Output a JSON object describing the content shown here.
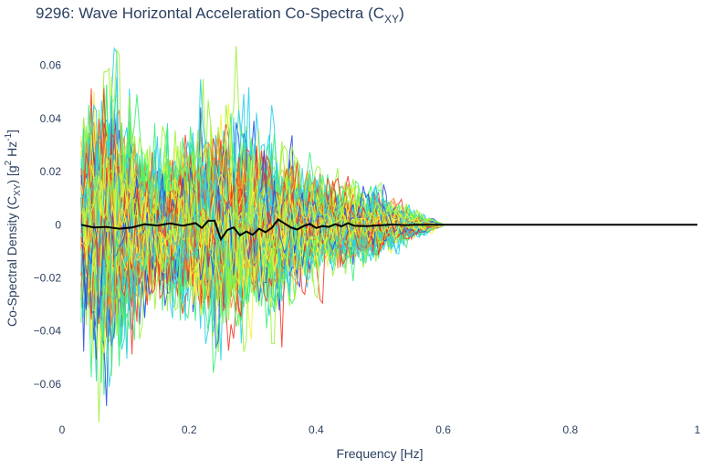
{
  "chart_data": {
    "type": "line",
    "title": {
      "main": "9296: Wave Horizontal Acceleration Co-Spectra (C",
      "sub": "XY",
      "close": ")"
    },
    "xlabel": "Frequency [Hz]",
    "ylabel": {
      "pre": "Co-Spectral Density (C",
      "sub": "XY",
      "mid": ") [g",
      "sup1": "2",
      "mid2": " Hz",
      "sup2": "-1",
      "post": "]"
    },
    "xlim": [
      0,
      1
    ],
    "ylim": [
      -0.07,
      0.075
    ],
    "x_ticks": [
      0,
      0.2,
      0.4,
      0.6,
      0.8,
      1
    ],
    "x_tick_labels": [
      "0",
      "0.2",
      "0.4",
      "0.6",
      "0.8",
      "1"
    ],
    "y_ticks": [
      -0.06,
      -0.04,
      -0.02,
      0,
      0.02,
      0.04,
      0.06
    ],
    "y_tick_labels": [
      "−0.06",
      "−0.04",
      "−0.02",
      "0",
      "0.02",
      "0.04",
      "0.06"
    ],
    "grid": false,
    "legend": "none",
    "spectra_colormap": [
      "#2b50e6",
      "#29d0ea",
      "#3cf07a",
      "#9cf23a",
      "#f4f33a",
      "#fb7f2d",
      "#f6301e"
    ],
    "envelope_peak_frequency_hz": 0.065,
    "envelope_peak_amplitude": 0.068,
    "mean_series": {
      "name": "mean",
      "color": "#000000",
      "x": [
        0.03,
        0.05,
        0.07,
        0.09,
        0.11,
        0.13,
        0.15,
        0.17,
        0.19,
        0.21,
        0.22,
        0.23,
        0.24,
        0.25,
        0.26,
        0.27,
        0.28,
        0.29,
        0.3,
        0.31,
        0.32,
        0.33,
        0.34,
        0.35,
        0.36,
        0.37,
        0.38,
        0.39,
        0.4,
        0.41,
        0.42,
        0.43,
        0.44,
        0.45,
        0.46,
        0.48,
        0.5,
        0.52,
        0.54,
        0.56,
        0.58,
        0.6,
        0.7,
        0.8,
        0.9,
        1.0
      ],
      "y": [
        0.0,
        -0.001,
        -0.0008,
        -0.0015,
        -0.001,
        0.0002,
        -0.0003,
        0.0005,
        -0.0004,
        0.0006,
        -0.0012,
        0.0015,
        0.0015,
        -0.0055,
        -0.002,
        -0.001,
        -0.004,
        -0.0025,
        -0.0038,
        -0.0015,
        -0.0028,
        -0.0012,
        0.002,
        0.0005,
        -0.001,
        -0.0018,
        -0.0005,
        0.0003,
        -0.0012,
        -0.0005,
        -0.0008,
        0.0002,
        -0.0006,
        0.0006,
        -0.0004,
        -0.0005,
        -0.0002,
        0.0001,
        -0.0001,
        0.0,
        0.0,
        0.0,
        0.0,
        0.0,
        0.0,
        0.0
      ]
    }
  }
}
